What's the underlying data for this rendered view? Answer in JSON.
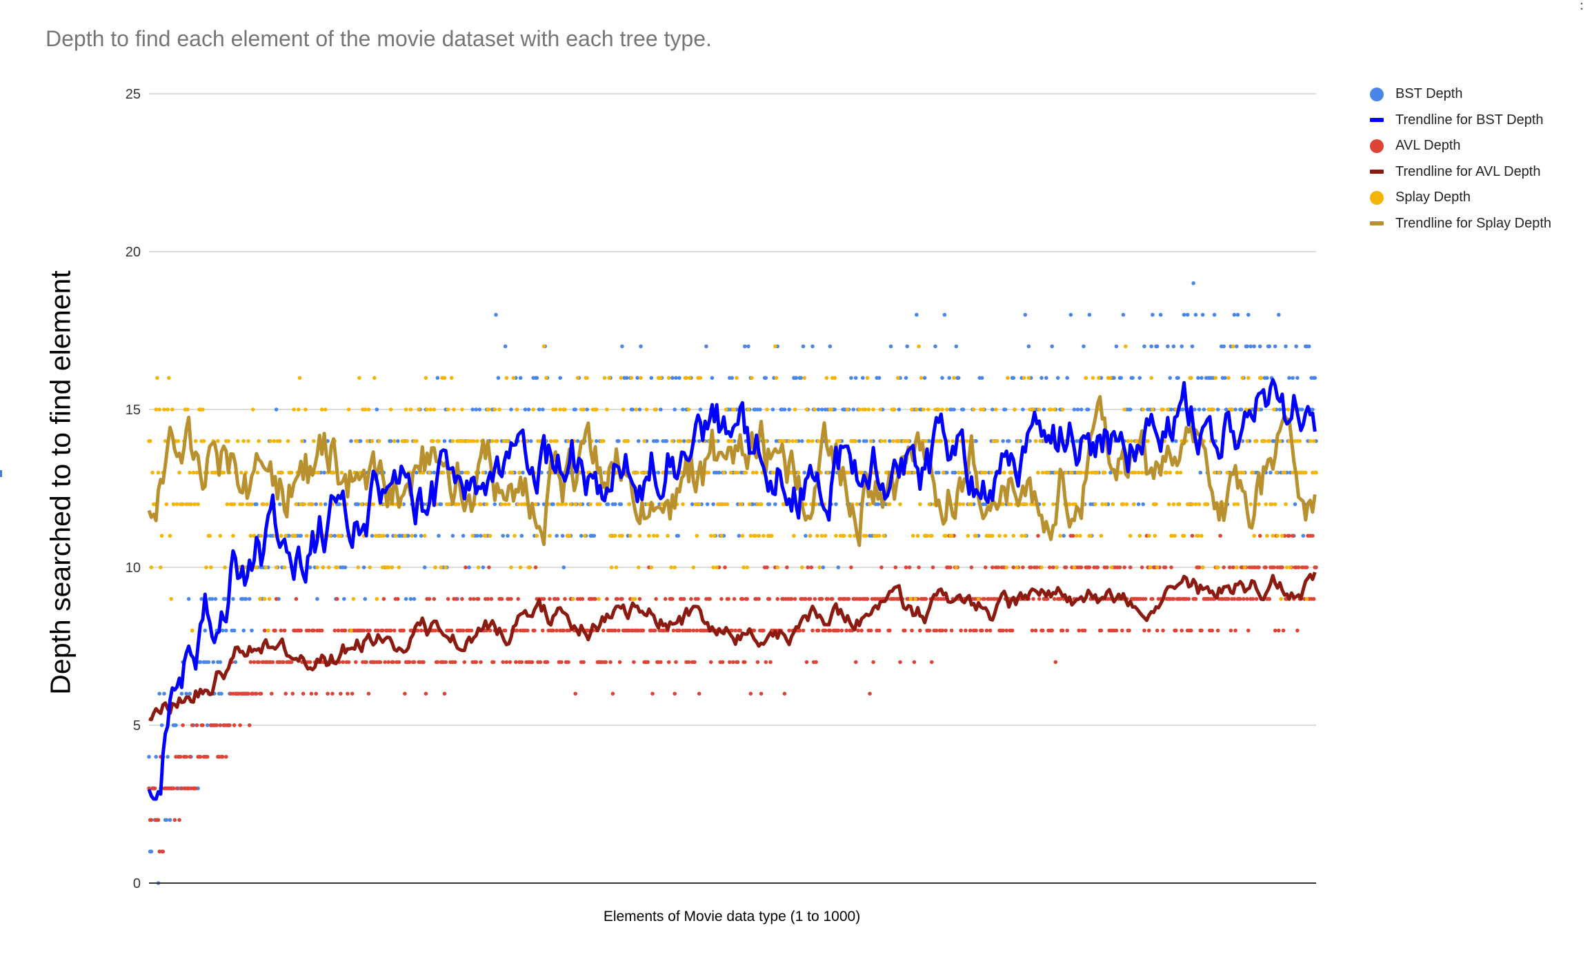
{
  "menu_label": "⋮",
  "chart_data": {
    "type": "scatter",
    "title": "Depth to find each element of the movie dataset with each tree type.",
    "xlabel": "Elements of Movie data type (1 to 1000)",
    "ylabel": "Depth searched to to find element",
    "x_range": [
      1,
      1000
    ],
    "ylim": [
      0,
      25
    ],
    "y_ticks": [
      "0",
      "5",
      "10",
      "15",
      "20",
      "25"
    ],
    "grid": true,
    "legend_position": "right",
    "legend": [
      "BST Depth",
      "Trendline for BST Depth",
      "AVL Depth",
      "Trendline for AVL Depth",
      "Splay Depth",
      "Trendline for Splay Depth"
    ],
    "colors": {
      "bst_points": "#4a86e8",
      "bst_trend": "#0000ff",
      "avl_points": "#db4437",
      "avl_trend": "#8b1a10",
      "splay_points": "#f4b400",
      "splay_trend": "#b8902e"
    },
    "series": [
      {
        "name": "BST Depth",
        "kind": "points",
        "approx_level_by_x": [
          {
            "x": 1,
            "y": 2
          },
          {
            "x": 100,
            "y": 11
          },
          {
            "x": 300,
            "y": 13
          },
          {
            "x": 500,
            "y": 14
          },
          {
            "x": 700,
            "y": 14
          },
          {
            "x": 900,
            "y": 15
          },
          {
            "x": 1000,
            "y": 15
          }
        ]
      },
      {
        "name": "Trendline for BST Depth",
        "kind": "line",
        "x": [
          1,
          25,
          50,
          75,
          100,
          150,
          200,
          250,
          300,
          350,
          400,
          450,
          500,
          550,
          600,
          650,
          700,
          750,
          800,
          850,
          900,
          950,
          1000
        ],
        "values": [
          2.8,
          6.5,
          8.5,
          10.5,
          10.6,
          11.2,
          12.0,
          12.3,
          12.6,
          13.3,
          13.2,
          13.8,
          14.2,
          13.2,
          13.8,
          13.6,
          13.0,
          13.6,
          14.0,
          14.2,
          14.6,
          14.8,
          15.2
        ]
      },
      {
        "name": "AVL Depth",
        "kind": "points",
        "approx_level_by_x": [
          {
            "x": 1,
            "y": 2
          },
          {
            "x": 100,
            "y": 7
          },
          {
            "x": 300,
            "y": 8
          },
          {
            "x": 500,
            "y": 8
          },
          {
            "x": 700,
            "y": 9
          },
          {
            "x": 900,
            "y": 9
          },
          {
            "x": 1000,
            "y": 10
          }
        ]
      },
      {
        "name": "Trendline for AVL Depth",
        "kind": "line",
        "x": [
          1,
          25,
          50,
          75,
          100,
          150,
          200,
          250,
          300,
          350,
          400,
          450,
          500,
          550,
          600,
          650,
          700,
          750,
          800,
          850,
          900,
          950,
          1000
        ],
        "values": [
          5.0,
          6.0,
          6.5,
          7.2,
          7.6,
          7.0,
          7.8,
          7.9,
          8.1,
          8.4,
          8.3,
          8.5,
          8.0,
          8.2,
          8.5,
          8.6,
          8.8,
          8.7,
          9.0,
          9.1,
          9.2,
          9.5,
          9.7
        ]
      },
      {
        "name": "Splay Depth",
        "kind": "points",
        "approx_level_by_x": [
          {
            "x": 1,
            "y": 13
          },
          {
            "x": 100,
            "y": 12
          },
          {
            "x": 300,
            "y": 13
          },
          {
            "x": 500,
            "y": 13
          },
          {
            "x": 700,
            "y": 13
          },
          {
            "x": 900,
            "y": 13
          },
          {
            "x": 1000,
            "y": 13
          }
        ]
      },
      {
        "name": "Trendline for Splay Depth",
        "kind": "line",
        "x": [
          1,
          25,
          50,
          75,
          100,
          150,
          200,
          250,
          300,
          350,
          400,
          450,
          500,
          550,
          600,
          650,
          700,
          750,
          800,
          850,
          900,
          950,
          1000
        ],
        "values": [
          12.0,
          13.0,
          13.5,
          13.0,
          13.0,
          13.0,
          13.2,
          13.0,
          13.2,
          13.0,
          13.0,
          13.0,
          13.2,
          13.0,
          13.0,
          13.0,
          13.0,
          13.0,
          13.0,
          13.2,
          13.0,
          13.0,
          13.0
        ]
      }
    ]
  }
}
